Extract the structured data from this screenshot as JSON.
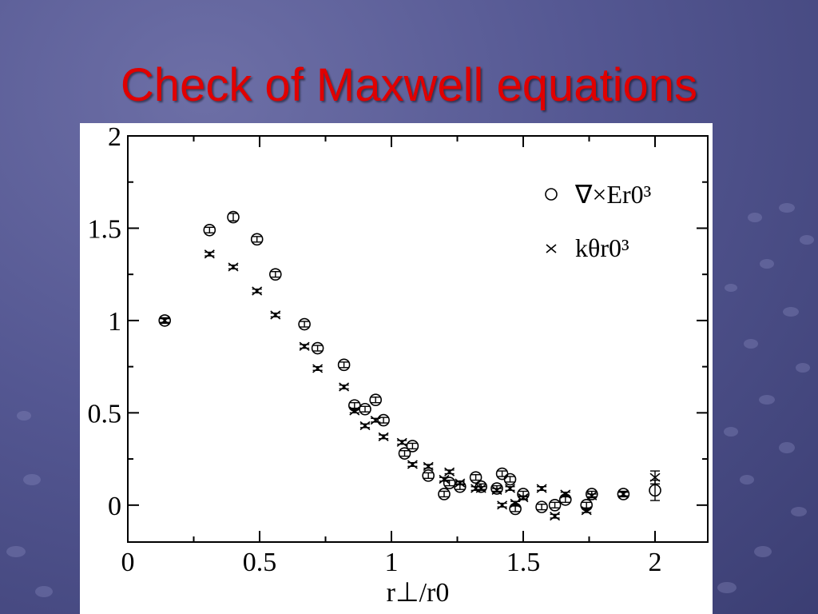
{
  "slide": {
    "title": "Check of Maxwell equations"
  },
  "colors": {
    "title": "#e00000",
    "background": "#545792",
    "panel": "#ffffff",
    "marks": "#000000"
  },
  "chart_data": {
    "type": "scatter",
    "xlabel": "r⊥/r0",
    "ylabel": "",
    "xlim": [
      0,
      2.2
    ],
    "ylim": [
      -0.2,
      2
    ],
    "xticks": [
      0,
      0.5,
      1,
      1.5,
      2
    ],
    "yticks": [
      0,
      0.5,
      1,
      1.5,
      2
    ],
    "xtick_labels": [
      "0",
      "0.5",
      "1",
      "1.5",
      "2"
    ],
    "ytick_labels": [
      "0",
      "0.5",
      "1",
      "1.5",
      "2"
    ],
    "grid": false,
    "legend_position": "top-right",
    "series": [
      {
        "name": "∇×Er0³",
        "marker": "circle",
        "x": [
          0.14,
          0.31,
          0.4,
          0.49,
          0.56,
          0.67,
          0.72,
          0.82,
          0.86,
          0.9,
          0.94,
          0.97,
          1.05,
          1.08,
          1.14,
          1.2,
          1.22,
          1.26,
          1.32,
          1.34,
          1.4,
          1.42,
          1.45,
          1.47,
          1.5,
          1.57,
          1.62,
          1.66,
          1.74,
          1.76,
          1.88,
          2.0
        ],
        "y": [
          1.0,
          1.49,
          1.56,
          1.44,
          1.25,
          0.98,
          0.85,
          0.76,
          0.54,
          0.52,
          0.57,
          0.46,
          0.28,
          0.32,
          0.16,
          0.06,
          0.12,
          0.1,
          0.15,
          0.1,
          0.09,
          0.17,
          0.14,
          -0.02,
          0.06,
          -0.01,
          0.0,
          0.03,
          0.0,
          0.06,
          0.06,
          0.08
        ],
        "err": [
          0.015,
          0.015,
          0.02,
          0.015,
          0.015,
          0.015,
          0.015,
          0.015,
          0.015,
          0.015,
          0.015,
          0.015,
          0.015,
          0.015,
          0.015,
          0.015,
          0.015,
          0.015,
          0.015,
          0.015,
          0.015,
          0.015,
          0.015,
          0.015,
          0.015,
          0.015,
          0.015,
          0.015,
          0.015,
          0.015,
          0.015,
          0.055
        ]
      },
      {
        "name": "kθr0³",
        "marker": "x",
        "x": [
          0.14,
          0.31,
          0.4,
          0.49,
          0.56,
          0.67,
          0.72,
          0.82,
          0.86,
          0.9,
          0.94,
          0.97,
          1.04,
          1.08,
          1.14,
          1.2,
          1.22,
          1.26,
          1.32,
          1.34,
          1.4,
          1.42,
          1.45,
          1.47,
          1.5,
          1.57,
          1.62,
          1.66,
          1.74,
          1.76,
          1.88,
          2.0
        ],
        "y": [
          1.0,
          1.36,
          1.29,
          1.16,
          1.03,
          0.86,
          0.74,
          0.64,
          0.51,
          0.43,
          0.46,
          0.37,
          0.34,
          0.22,
          0.21,
          0.14,
          0.18,
          0.12,
          0.09,
          0.09,
          0.08,
          0.0,
          0.09,
          0.01,
          0.04,
          0.09,
          -0.06,
          0.06,
          -0.03,
          0.05,
          0.06,
          0.15
        ],
        "err": [
          0.01,
          0.01,
          0.01,
          0.01,
          0.01,
          0.01,
          0.01,
          0.01,
          0.01,
          0.01,
          0.01,
          0.01,
          0.01,
          0.01,
          0.01,
          0.01,
          0.01,
          0.01,
          0.01,
          0.01,
          0.01,
          0.01,
          0.01,
          0.01,
          0.01,
          0.01,
          0.01,
          0.01,
          0.01,
          0.01,
          0.01,
          0.035
        ]
      }
    ]
  }
}
